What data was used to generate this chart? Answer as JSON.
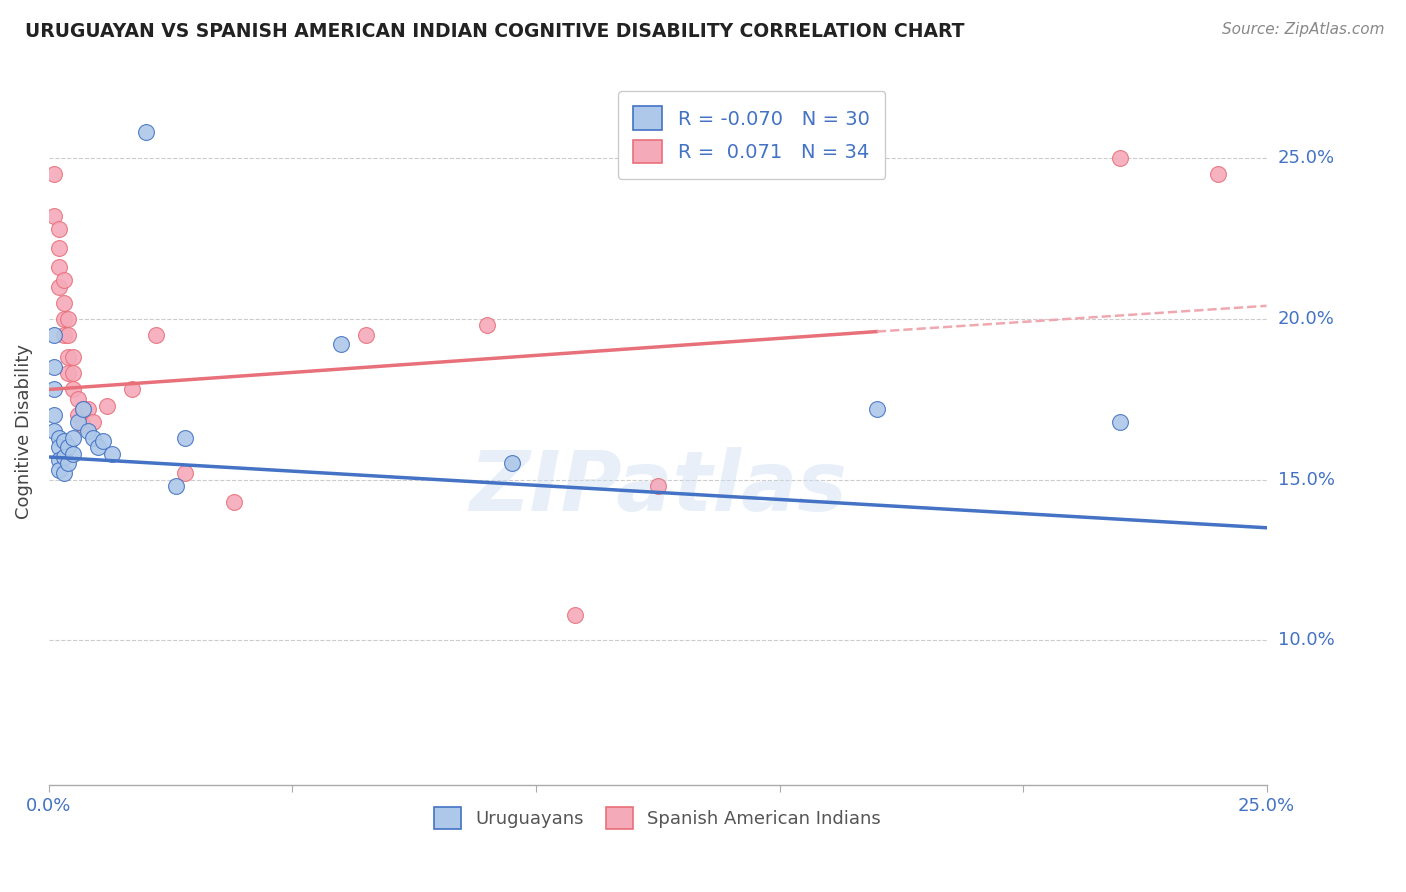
{
  "title": "URUGUAYAN VS SPANISH AMERICAN INDIAN COGNITIVE DISABILITY CORRELATION CHART",
  "source": "Source: ZipAtlas.com",
  "ylabel": "Cognitive Disability",
  "ylabel_right_labels": [
    "25.0%",
    "20.0%",
    "15.0%",
    "10.0%"
  ],
  "ylabel_right_values": [
    0.25,
    0.2,
    0.15,
    0.1
  ],
  "xlim": [
    0.0,
    0.25
  ],
  "ylim": [
    0.055,
    0.275
  ],
  "legend_r_blue": "-0.070",
  "legend_n_blue": "30",
  "legend_r_pink": "0.071",
  "legend_n_pink": "34",
  "blue_scatter": [
    [
      0.001,
      0.195
    ],
    [
      0.001,
      0.185
    ],
    [
      0.001,
      0.178
    ],
    [
      0.001,
      0.17
    ],
    [
      0.001,
      0.165
    ],
    [
      0.002,
      0.163
    ],
    [
      0.002,
      0.16
    ],
    [
      0.002,
      0.156
    ],
    [
      0.002,
      0.153
    ],
    [
      0.003,
      0.162
    ],
    [
      0.003,
      0.157
    ],
    [
      0.003,
      0.152
    ],
    [
      0.004,
      0.16
    ],
    [
      0.004,
      0.155
    ],
    [
      0.005,
      0.163
    ],
    [
      0.005,
      0.158
    ],
    [
      0.006,
      0.168
    ],
    [
      0.007,
      0.172
    ],
    [
      0.008,
      0.165
    ],
    [
      0.009,
      0.163
    ],
    [
      0.01,
      0.16
    ],
    [
      0.011,
      0.162
    ],
    [
      0.013,
      0.158
    ],
    [
      0.02,
      0.258
    ],
    [
      0.026,
      0.148
    ],
    [
      0.028,
      0.163
    ],
    [
      0.06,
      0.192
    ],
    [
      0.095,
      0.155
    ],
    [
      0.17,
      0.172
    ],
    [
      0.22,
      0.168
    ]
  ],
  "pink_scatter": [
    [
      0.001,
      0.245
    ],
    [
      0.001,
      0.232
    ],
    [
      0.002,
      0.228
    ],
    [
      0.002,
      0.222
    ],
    [
      0.002,
      0.216
    ],
    [
      0.002,
      0.21
    ],
    [
      0.003,
      0.212
    ],
    [
      0.003,
      0.205
    ],
    [
      0.003,
      0.2
    ],
    [
      0.003,
      0.195
    ],
    [
      0.004,
      0.2
    ],
    [
      0.004,
      0.195
    ],
    [
      0.004,
      0.188
    ],
    [
      0.004,
      0.183
    ],
    [
      0.005,
      0.188
    ],
    [
      0.005,
      0.183
    ],
    [
      0.005,
      0.178
    ],
    [
      0.006,
      0.175
    ],
    [
      0.006,
      0.17
    ],
    [
      0.007,
      0.172
    ],
    [
      0.007,
      0.167
    ],
    [
      0.008,
      0.172
    ],
    [
      0.009,
      0.168
    ],
    [
      0.012,
      0.173
    ],
    [
      0.017,
      0.178
    ],
    [
      0.022,
      0.195
    ],
    [
      0.028,
      0.152
    ],
    [
      0.038,
      0.143
    ],
    [
      0.065,
      0.195
    ],
    [
      0.09,
      0.198
    ],
    [
      0.125,
      0.148
    ],
    [
      0.108,
      0.108
    ],
    [
      0.22,
      0.25
    ],
    [
      0.24,
      0.245
    ]
  ],
  "blue_color": "#adc8e8",
  "pink_color": "#f5aaba",
  "blue_line_color": "#4472c4",
  "pink_line_color": "#e8707a",
  "pink_line_dashed_color": "#f0a8b0",
  "grid_color": "#cccccc",
  "right_axis_color": "#4472c4",
  "background_color": "#ffffff",
  "blue_trendline": [
    [
      0.0,
      0.157
    ],
    [
      0.25,
      0.135
    ]
  ],
  "pink_trendline_solid": [
    [
      0.0,
      0.178
    ],
    [
      0.17,
      0.196
    ]
  ],
  "pink_trendline_dashed": [
    [
      0.17,
      0.196
    ],
    [
      0.25,
      0.204
    ]
  ]
}
